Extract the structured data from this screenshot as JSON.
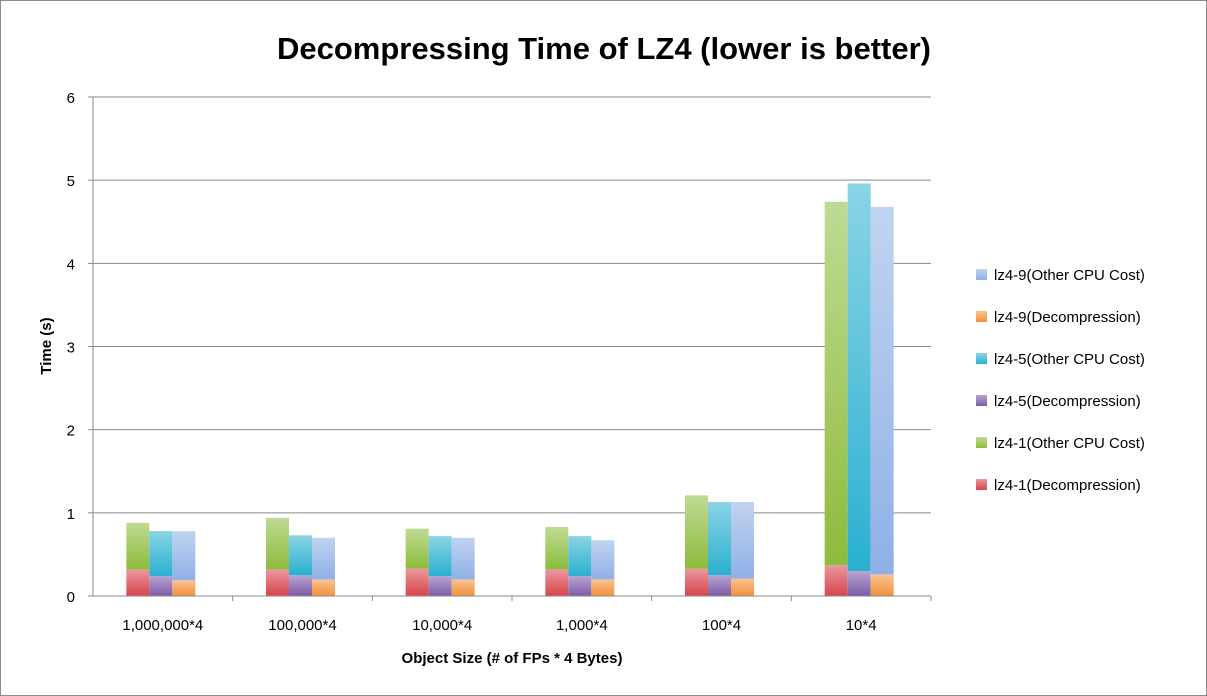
{
  "chart_data": {
    "type": "bar",
    "subtype": "stacked-grouped",
    "title": "Decompressing Time of LZ4 (lower is better)",
    "xlabel": "Object Size (# of FPs * 4 Bytes)",
    "ylabel": "Time (s)",
    "ylim": [
      0,
      6
    ],
    "yticks": [
      "0",
      "1",
      "2",
      "3",
      "4",
      "5",
      "6"
    ],
    "grid": true,
    "legend_position": "right",
    "categories": [
      "1,000,000*4",
      "100,000*4",
      "10,000*4",
      "1,000*4",
      "100*4",
      "10*4"
    ],
    "groups": [
      {
        "name": "lz4-1",
        "series": [
          {
            "name": "lz4-1(Decompression)",
            "color": "#d9434c",
            "values": [
              0.32,
              0.32,
              0.33,
              0.32,
              0.33,
              0.37
            ]
          },
          {
            "name": "lz4-1(Other CPU Cost)",
            "color": "#8cbc3c",
            "values": [
              0.56,
              0.62,
              0.48,
              0.51,
              0.88,
              4.37
            ]
          }
        ]
      },
      {
        "name": "lz4-5",
        "series": [
          {
            "name": "lz4-5(Decompression)",
            "color": "#7c5ca8",
            "values": [
              0.24,
              0.25,
              0.24,
              0.24,
              0.25,
              0.3
            ]
          },
          {
            "name": "lz4-5(Other CPU Cost)",
            "color": "#2ab0d0",
            "values": [
              0.54,
              0.48,
              0.48,
              0.48,
              0.88,
              4.66
            ]
          }
        ]
      },
      {
        "name": "lz4-9",
        "series": [
          {
            "name": "lz4-9(Decompression)",
            "color": "#f2913a",
            "values": [
              0.19,
              0.2,
              0.2,
              0.2,
              0.21,
              0.26
            ]
          },
          {
            "name": "lz4-9(Other CPU Cost)",
            "color": "#8fb0e6",
            "values": [
              0.59,
              0.5,
              0.5,
              0.47,
              0.92,
              4.42
            ]
          }
        ]
      }
    ],
    "legend": [
      {
        "label": "lz4-9(Other CPU Cost)",
        "color": "#8fb0e6"
      },
      {
        "label": "lz4-9(Decompression)",
        "color": "#f2913a"
      },
      {
        "label": "lz4-5(Other CPU Cost)",
        "color": "#2ab0d0"
      },
      {
        "label": "lz4-5(Decompression)",
        "color": "#7c5ca8"
      },
      {
        "label": "lz4-1(Other CPU Cost)",
        "color": "#8cbc3c"
      },
      {
        "label": "lz4-1(Decompression)",
        "color": "#d9434c"
      }
    ]
  }
}
